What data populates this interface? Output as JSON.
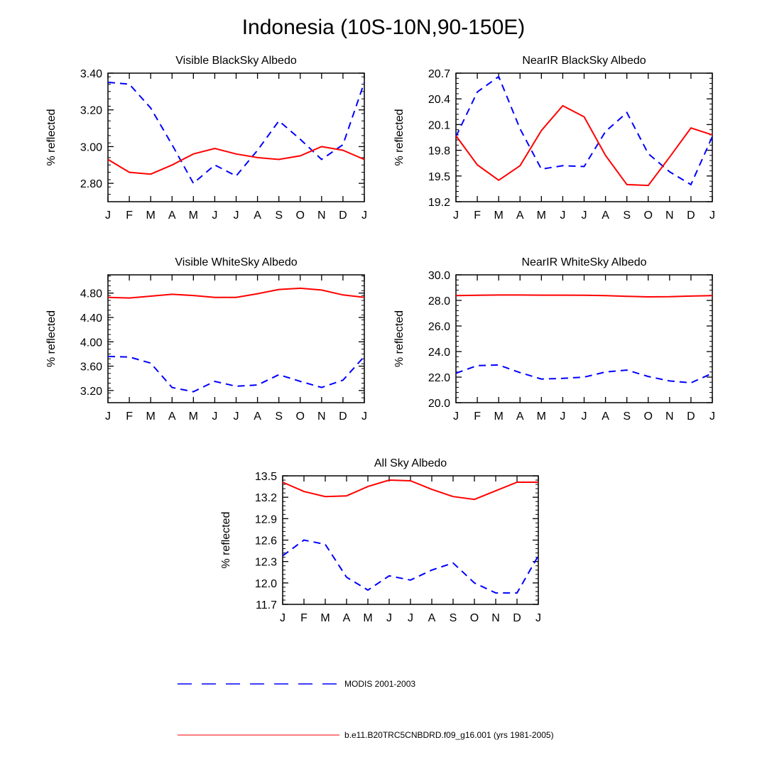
{
  "title": "Indonesia (10S-10N,90-150E)",
  "legend": [
    {
      "label": "MODIS 2001-2003",
      "color": "#0000ff",
      "dash": true
    },
    {
      "label": "b.e11.B20TRC5CNBDRD.f09_g16.001 (yrs 1981-2005)",
      "color": "#ff0000",
      "dash": false
    }
  ],
  "chart_data": [
    {
      "type": "line",
      "title": "Visible BlackSky Albedo",
      "ylabel": "% reflected",
      "categories": [
        "J",
        "F",
        "M",
        "A",
        "M",
        "J",
        "J",
        "A",
        "S",
        "O",
        "N",
        "D",
        "J"
      ],
      "ylim": [
        2.7,
        3.4
      ],
      "yticks": [
        "2.80",
        "3.00",
        "3.20",
        "3.40"
      ],
      "ytick_values": [
        2.8,
        3.0,
        3.2,
        3.4
      ],
      "series": [
        {
          "name": "MODIS 2001-2003",
          "color": "#0000ff",
          "dash": true,
          "values": [
            3.35,
            3.34,
            3.21,
            3.01,
            2.8,
            2.9,
            2.84,
            2.98,
            3.14,
            3.04,
            2.93,
            3.01,
            3.35
          ]
        },
        {
          "name": "b.e11.B20TRC5CNBDRD.f09_g16.001 (yrs 1981-2005)",
          "color": "#ff0000",
          "dash": false,
          "values": [
            2.93,
            2.86,
            2.85,
            2.9,
            2.96,
            2.99,
            2.96,
            2.94,
            2.93,
            2.95,
            3.0,
            2.98,
            2.93
          ]
        }
      ]
    },
    {
      "type": "line",
      "title": "NearIR BlackSky Albedo",
      "ylabel": "% reflected",
      "categories": [
        "J",
        "F",
        "M",
        "A",
        "M",
        "J",
        "J",
        "A",
        "S",
        "O",
        "N",
        "D",
        "J"
      ],
      "ylim": [
        19.2,
        20.7
      ],
      "yticks": [
        "19.2",
        "19.5",
        "19.8",
        "20.1",
        "20.4",
        "20.7"
      ],
      "ytick_values": [
        19.2,
        19.5,
        19.8,
        20.1,
        20.4,
        20.7
      ],
      "series": [
        {
          "name": "MODIS 2001-2003",
          "color": "#0000ff",
          "dash": true,
          "values": [
            19.96,
            20.48,
            20.66,
            20.05,
            19.58,
            19.62,
            19.61,
            20.02,
            20.24,
            19.76,
            19.55,
            19.4,
            19.96
          ]
        },
        {
          "name": "b.e11.B20TRC5CNBDRD.f09_g16.001 (yrs 1981-2005)",
          "color": "#ff0000",
          "dash": false,
          "values": [
            19.97,
            19.63,
            19.45,
            19.62,
            20.03,
            20.32,
            20.19,
            19.74,
            19.4,
            19.39,
            19.72,
            20.06,
            19.98
          ]
        }
      ]
    },
    {
      "type": "line",
      "title": "Visible WhiteSky Albedo",
      "ylabel": "% reflected",
      "categories": [
        "J",
        "F",
        "M",
        "A",
        "M",
        "J",
        "J",
        "A",
        "S",
        "O",
        "N",
        "D",
        "J"
      ],
      "ylim": [
        3.0,
        5.1
      ],
      "yticks": [
        "3.20",
        "3.60",
        "4.00",
        "4.40",
        "4.80"
      ],
      "ytick_values": [
        3.2,
        3.6,
        4.0,
        4.4,
        4.8
      ],
      "series": [
        {
          "name": "MODIS 2001-2003",
          "color": "#0000ff",
          "dash": true,
          "values": [
            3.76,
            3.75,
            3.65,
            3.25,
            3.18,
            3.35,
            3.27,
            3.29,
            3.46,
            3.35,
            3.25,
            3.37,
            3.76
          ]
        },
        {
          "name": "b.e11.B20TRC5CNBDRD.f09_g16.001 (yrs 1981-2005)",
          "color": "#ff0000",
          "dash": false,
          "values": [
            4.73,
            4.72,
            4.75,
            4.78,
            4.76,
            4.73,
            4.73,
            4.79,
            4.86,
            4.88,
            4.85,
            4.77,
            4.73
          ]
        }
      ]
    },
    {
      "type": "line",
      "title": "NearIR WhiteSky Albedo",
      "ylabel": "% reflected",
      "categories": [
        "J",
        "F",
        "M",
        "A",
        "M",
        "J",
        "J",
        "A",
        "S",
        "O",
        "N",
        "D",
        "J"
      ],
      "ylim": [
        20.0,
        30.0
      ],
      "yticks": [
        "20.0",
        "22.0",
        "24.0",
        "26.0",
        "28.0",
        "30.0"
      ],
      "ytick_values": [
        20,
        22,
        24,
        26,
        28,
        30
      ],
      "series": [
        {
          "name": "MODIS 2001-2003",
          "color": "#0000ff",
          "dash": true,
          "values": [
            22.3,
            22.9,
            22.95,
            22.35,
            21.85,
            21.9,
            22.0,
            22.4,
            22.55,
            22.05,
            21.7,
            21.55,
            22.3
          ]
        },
        {
          "name": "b.e11.B20TRC5CNBDRD.f09_g16.001 (yrs 1981-2005)",
          "color": "#ff0000",
          "dash": false,
          "values": [
            28.38,
            28.4,
            28.42,
            28.42,
            28.41,
            28.41,
            28.4,
            28.37,
            28.32,
            28.28,
            28.29,
            28.34,
            28.38
          ]
        }
      ]
    },
    {
      "type": "line",
      "title": "All Sky Albedo",
      "ylabel": "% reflected",
      "categories": [
        "J",
        "F",
        "M",
        "A",
        "M",
        "J",
        "J",
        "A",
        "S",
        "O",
        "N",
        "D",
        "J"
      ],
      "ylim": [
        11.7,
        13.5
      ],
      "yticks": [
        "11.7",
        "12.0",
        "12.3",
        "12.6",
        "12.9",
        "13.2",
        "13.5"
      ],
      "ytick_values": [
        11.7,
        12.0,
        12.3,
        12.6,
        12.9,
        13.2,
        13.5
      ],
      "series": [
        {
          "name": "MODIS 2001-2003",
          "color": "#0000ff",
          "dash": true,
          "values": [
            12.38,
            12.6,
            12.54,
            12.08,
            11.9,
            12.1,
            12.04,
            12.18,
            12.28,
            12.0,
            11.86,
            11.86,
            12.38
          ]
        },
        {
          "name": "b.e11.B20TRC5CNBDRD.f09_g16.001 (yrs 1981-2005)",
          "color": "#ff0000",
          "dash": false,
          "values": [
            13.41,
            13.28,
            13.21,
            13.22,
            13.35,
            13.44,
            13.43,
            13.31,
            13.21,
            13.17,
            13.29,
            13.41,
            13.41
          ]
        }
      ]
    }
  ]
}
